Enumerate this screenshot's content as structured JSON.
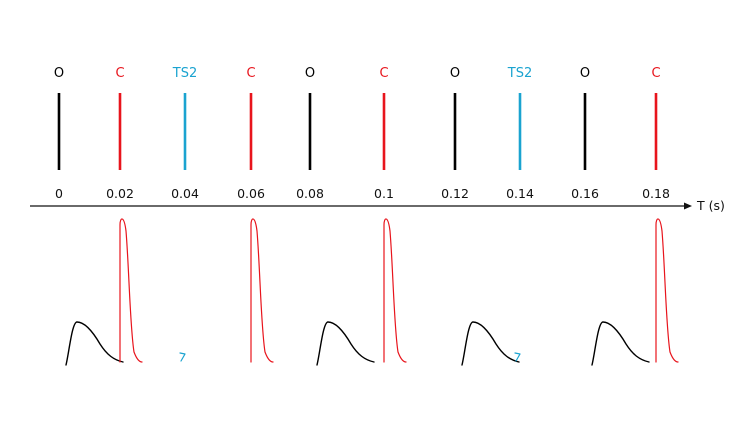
{
  "axis": {
    "label": "T (s)"
  },
  "colors": {
    "O": "#000000",
    "C": "#e8141c",
    "TS2": "#1aa3d0",
    "axis": "#111111"
  },
  "events": [
    {
      "time": 0.0,
      "tick": "0",
      "type": "O"
    },
    {
      "time": 0.02,
      "tick": "0.02",
      "type": "C"
    },
    {
      "time": 0.04,
      "tick": "0.04",
      "type": "TS2"
    },
    {
      "time": 0.06,
      "tick": "0.06",
      "type": "C"
    },
    {
      "time": 0.08,
      "tick": "0.08",
      "type": "O"
    },
    {
      "time": 0.1,
      "tick": "0.1",
      "type": "C"
    },
    {
      "time": 0.12,
      "tick": "0.12",
      "type": "O"
    },
    {
      "time": 0.14,
      "tick": "0.14",
      "type": "TS2"
    },
    {
      "time": 0.16,
      "tick": "0.16",
      "type": "O"
    },
    {
      "time": 0.18,
      "tick": "0.18",
      "type": "C"
    }
  ],
  "waveforms": [
    {
      "kind": "hump",
      "color_key": "O"
    },
    {
      "kind": "spike",
      "color_key": "C"
    },
    {
      "kind": "small",
      "color_key": "TS2"
    },
    {
      "kind": "spike",
      "color_key": "C"
    },
    {
      "kind": "hump",
      "color_key": "O"
    },
    {
      "kind": "spike",
      "color_key": "C"
    },
    {
      "kind": "hump",
      "color_key": "O"
    },
    {
      "kind": "small",
      "color_key": "TS2"
    },
    {
      "kind": "hump",
      "color_key": "O"
    },
    {
      "kind": "spike",
      "color_key": "C"
    }
  ]
}
